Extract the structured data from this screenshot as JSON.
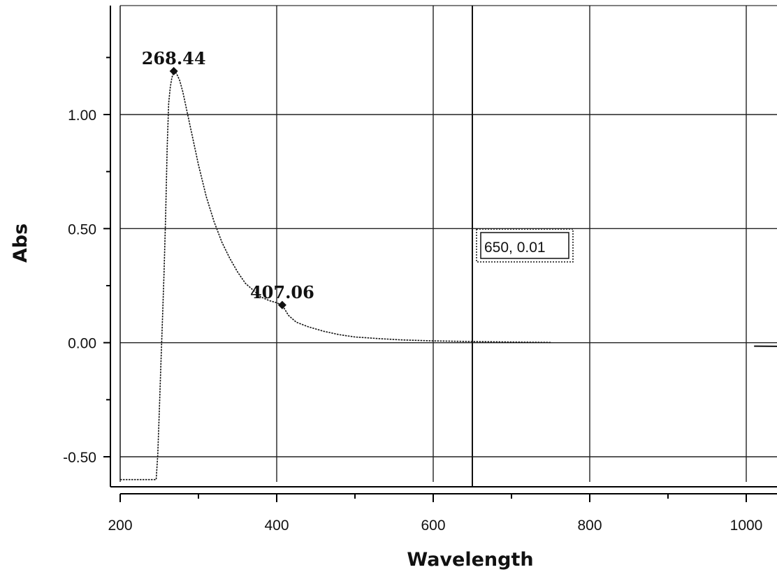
{
  "chart_data": {
    "type": "line",
    "xlabel": "Wavelength",
    "ylabel": "Abs",
    "xlim": [
      175,
      1195
    ],
    "ylim": [
      -0.63,
      1.45
    ],
    "x_ticks": [
      200,
      400,
      600,
      800,
      1000
    ],
    "x_tick_labels": [
      "200",
      "400",
      "600",
      "800",
      "1000"
    ],
    "x_minor_ticks": [
      300,
      500,
      700,
      900
    ],
    "y_ticks": [
      -0.5,
      0.0,
      0.5,
      1.0
    ],
    "y_tick_labels": [
      "-0.50",
      "0.00",
      "0.50",
      "1.00"
    ],
    "y_minor_ticks": [
      -0.25,
      0.25,
      0.75,
      1.25
    ],
    "grid": true,
    "series": [
      {
        "x": [
          200,
          246,
          248,
          250,
          252,
          254,
          256,
          258,
          260,
          262,
          264,
          266,
          268.44,
          272,
          276,
          280,
          285,
          290,
          295,
          300,
          310,
          320,
          330,
          340,
          350,
          360,
          370,
          380,
          390,
          400,
          407.06,
          415,
          425,
          440,
          460,
          480,
          500,
          530,
          560,
          600,
          650,
          700,
          750
        ],
        "y": [
          -0.6,
          -0.6,
          -0.49,
          -0.3,
          -0.1,
          0.1,
          0.3,
          0.55,
          0.85,
          1.05,
          1.12,
          1.16,
          1.19,
          1.18,
          1.15,
          1.1,
          1.02,
          0.94,
          0.86,
          0.78,
          0.64,
          0.53,
          0.44,
          0.37,
          0.31,
          0.26,
          0.23,
          0.2,
          0.185,
          0.175,
          0.165,
          0.12,
          0.09,
          0.07,
          0.05,
          0.035,
          0.025,
          0.018,
          0.012,
          0.008,
          0.005,
          0.003,
          0.001
        ]
      },
      {
        "x": [
          1010,
          1195
        ],
        "y": [
          -0.015,
          -0.02
        ]
      }
    ],
    "annotations": [
      {
        "label": "268.44",
        "x": 268.44,
        "y": 1.19
      },
      {
        "label": "407.06",
        "x": 407.06,
        "y": 0.165
      }
    ],
    "cursor": {
      "x": 650,
      "label": "650, 0.01"
    }
  }
}
